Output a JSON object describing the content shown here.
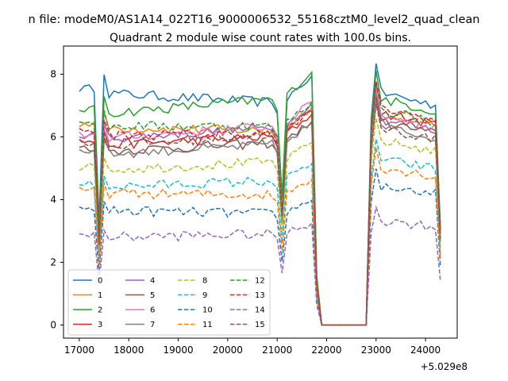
{
  "chart_data": {
    "type": "line",
    "suptitle": "n file: modeM0/AS1A14_022T16_9000006532_55168cztM0_level2_quad_clean",
    "title": "Quadrant 2 module wise count rates with 100.0s bins.",
    "xlabel": "",
    "ylabel": "",
    "x_offset_label": "+5.029e8",
    "xlim": [
      16680,
      24640
    ],
    "ylim": [
      -0.42,
      8.9
    ],
    "xticks": [
      17000,
      18000,
      19000,
      20000,
      21000,
      22000,
      23000,
      24000
    ],
    "yticks": [
      0,
      2,
      4,
      6,
      8
    ],
    "legend_position": "lower-left",
    "legend_columns": 4,
    "colors": [
      "#1f77b4",
      "#ff7f0e",
      "#2ca02c",
      "#d62728",
      "#9467bd",
      "#8c564b",
      "#e377c2",
      "#7f7f7f",
      "#bcbd22",
      "#17becf",
      "#1f77b4",
      "#ff7f0e",
      "#2ca02c",
      "#d62728",
      "#9467bd",
      "#8c564b"
    ],
    "series": [
      {
        "name": "0",
        "level_a": 7.4,
        "level_b": 7.1,
        "level_c": 7.45
      },
      {
        "name": "1",
        "level_a": 6.3,
        "level_b": 6.2,
        "level_c": 6.7
      },
      {
        "name": "2",
        "level_a": 6.75,
        "level_b": 7.2,
        "level_c": 7.25
      },
      {
        "name": "3",
        "level_a": 5.75,
        "level_b": 6.0,
        "level_c": 6.8
      },
      {
        "name": "4",
        "level_a": 5.95,
        "level_b": 6.3,
        "level_c": 6.6
      },
      {
        "name": "5",
        "level_a": 5.55,
        "level_b": 5.8,
        "level_c": 6.5
      },
      {
        "name": "6",
        "level_a": 5.95,
        "level_b": 6.35,
        "level_c": 6.75
      },
      {
        "name": "7",
        "level_a": 5.45,
        "level_b": 5.75,
        "level_c": 6.35
      },
      {
        "name": "8",
        "level_a": 4.95,
        "level_b": 5.2,
        "level_c": 5.9
      },
      {
        "name": "9",
        "level_a": 4.4,
        "level_b": 4.6,
        "level_c": 5.3
      },
      {
        "name": "10",
        "level_a": 3.65,
        "level_b": 3.55,
        "level_c": 4.45
      },
      {
        "name": "11",
        "level_a": 4.2,
        "level_b": 4.15,
        "level_c": 5.05
      },
      {
        "name": "12",
        "level_a": 6.35,
        "level_b": 6.35,
        "level_c": 6.9
      },
      {
        "name": "13",
        "level_a": 6.05,
        "level_b": 6.1,
        "level_c": 6.95
      },
      {
        "name": "14",
        "level_a": 2.8,
        "level_b": 2.9,
        "level_c": 3.35
      },
      {
        "name": "15",
        "level_a": 5.7,
        "level_b": 6.1,
        "level_c": 6.3
      }
    ]
  }
}
